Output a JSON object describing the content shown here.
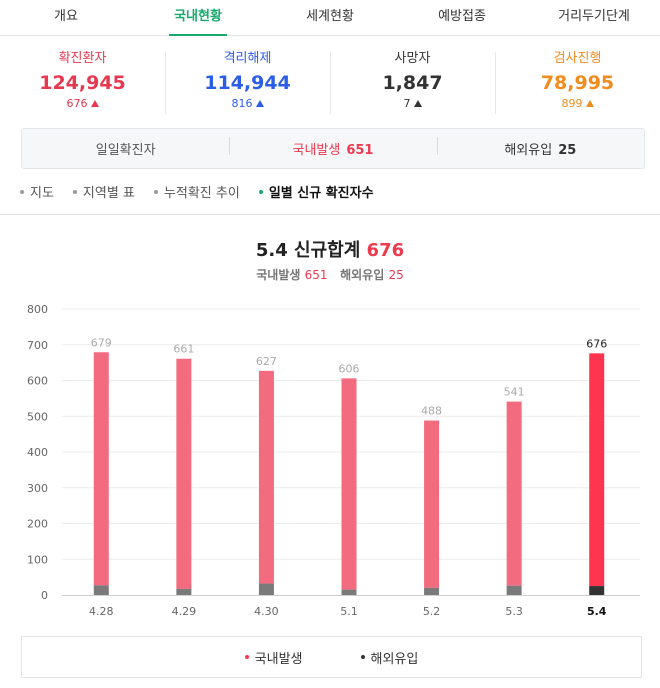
{
  "tabs": [
    {
      "label": "개요",
      "active": false
    },
    {
      "label": "국내현황",
      "active": true
    },
    {
      "label": "세계현황",
      "active": false
    },
    {
      "label": "예방접종",
      "active": false
    },
    {
      "label": "거리두기단계",
      "active": false
    }
  ],
  "stats": [
    {
      "label": "확진환자",
      "value": "124,945",
      "delta": "676",
      "color": "#e8384f"
    },
    {
      "label": "격리해제",
      "value": "114,944",
      "delta": "816",
      "color": "#2b5ee6"
    },
    {
      "label": "사망자",
      "value": "1,847",
      "delta": "7",
      "color": "#333333"
    },
    {
      "label": "검사진행",
      "value": "78,995",
      "delta": "899",
      "color": "#f08c1d"
    }
  ],
  "daily": {
    "label": "일일확진자",
    "domestic_label": "국내발생",
    "domestic_value": "651",
    "overseas_label": "해외유입",
    "overseas_value": "25"
  },
  "subnav": [
    {
      "label": "지도",
      "active": false
    },
    {
      "label": "지역별 표",
      "active": false
    },
    {
      "label": "누적확진 추이",
      "active": false
    },
    {
      "label": "일별 신규 확진자수",
      "active": true
    }
  ],
  "chart_header": {
    "title_prefix": "5.4 신규합계",
    "title_total": "676",
    "domestic_label": "국내발생",
    "domestic_value": "651",
    "overseas_label": "해외유입",
    "overseas_value": "25"
  },
  "chart_data": {
    "type": "bar",
    "stacked": true,
    "categories": [
      "4.28",
      "4.29",
      "4.30",
      "5.1",
      "5.2",
      "5.3",
      "5.4"
    ],
    "totals": [
      679,
      661,
      627,
      606,
      488,
      541,
      676
    ],
    "series": [
      {
        "name": "국내발생",
        "color": "#f36b7f",
        "highlight_color": "#ff3550",
        "values": [
          652,
          644,
          595,
          591,
          468,
          515,
          651
        ]
      },
      {
        "name": "해외유입",
        "color": "#7a7a7a",
        "highlight_color": "#333333",
        "values": [
          27,
          17,
          32,
          15,
          20,
          26,
          25
        ]
      }
    ],
    "y_ticks": [
      0,
      100,
      200,
      300,
      400,
      500,
      600,
      700,
      800
    ],
    "ylim": [
      0,
      800
    ],
    "highlight_index": 6,
    "grid": true,
    "legend_position": "bottom"
  },
  "colors": {
    "accent": "#16a96b",
    "red": "#ee3a4f"
  }
}
